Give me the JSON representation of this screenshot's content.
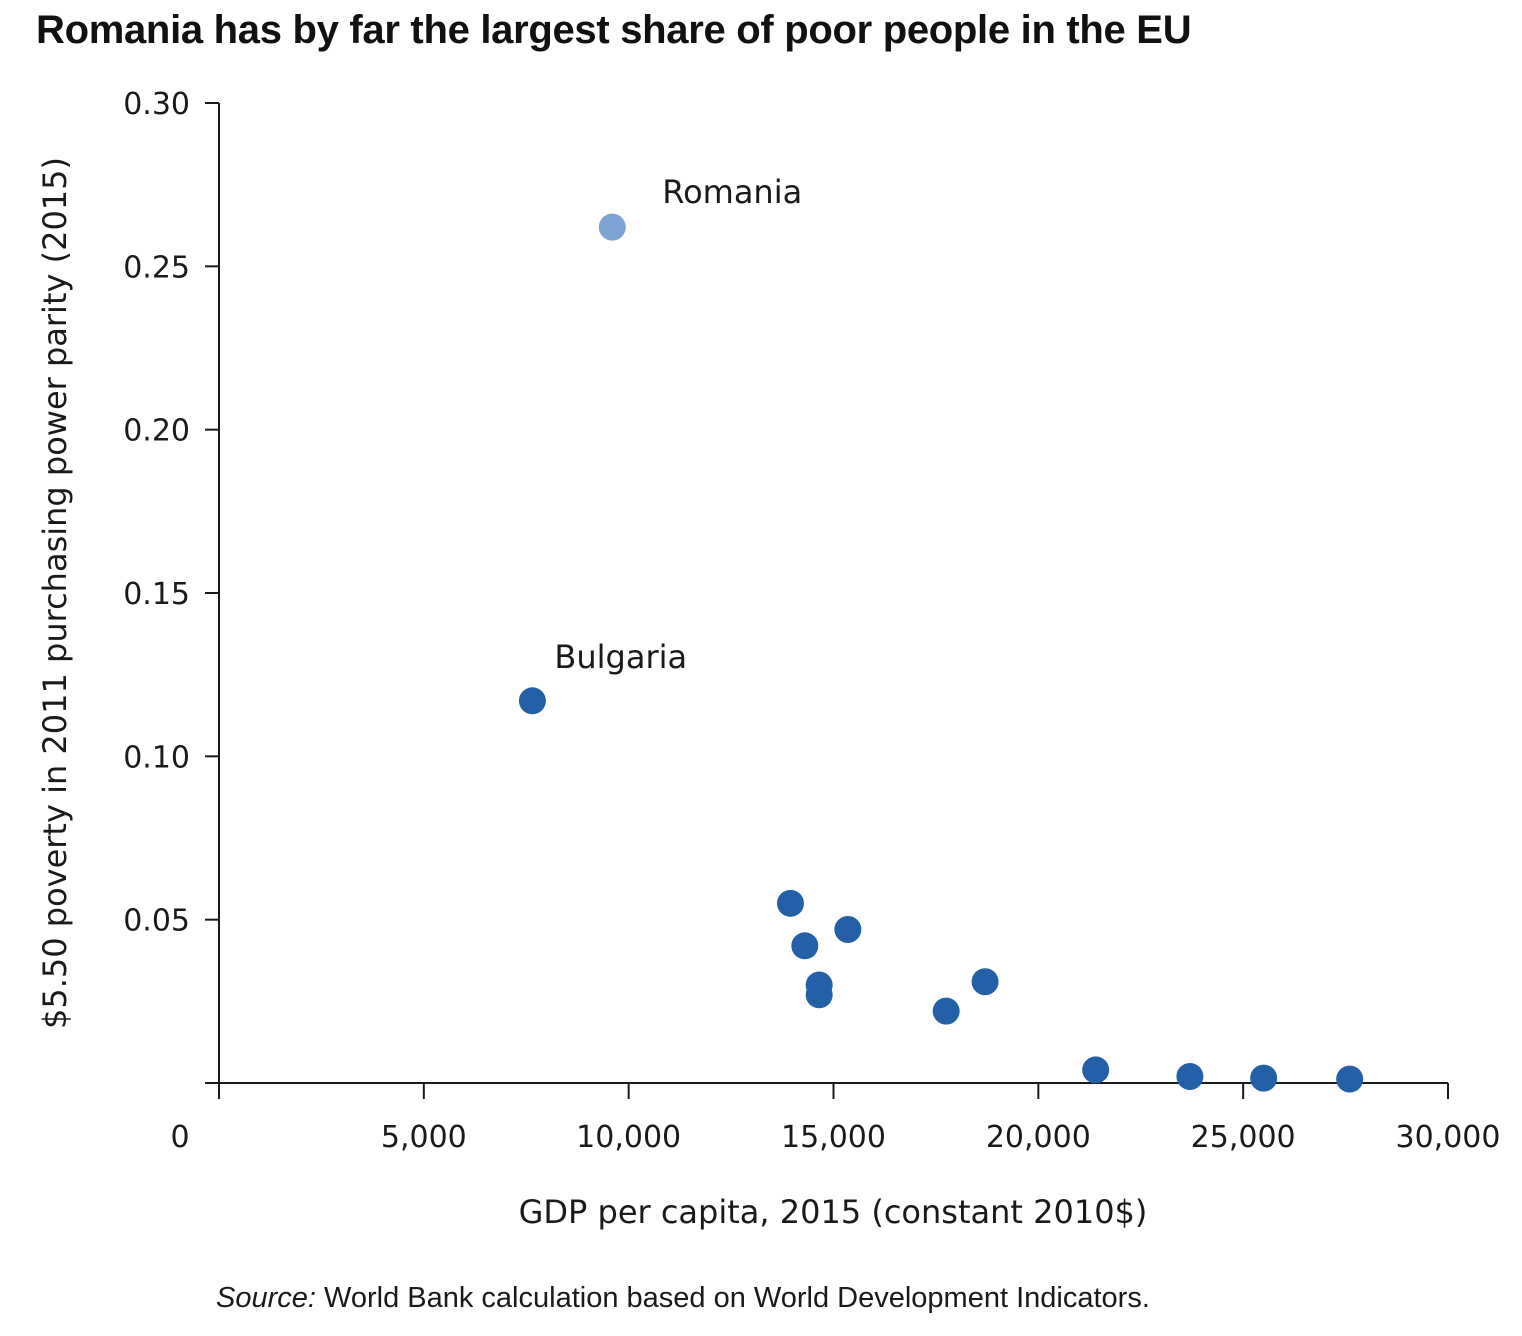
{
  "chart_data": {
    "type": "scatter",
    "title": "Romania has by far the largest share of poor people in the EU",
    "xlabel": "GDP per capita, 2015 (constant 2010$)",
    "ylabel": "$5.50 poverty in 2011 purchasing power parity (2015)",
    "xlim": [
      0,
      30000
    ],
    "ylim": [
      0,
      0.3
    ],
    "x_ticks": [
      0,
      5000,
      10000,
      15000,
      20000,
      25000,
      30000
    ],
    "x_tick_labels": [
      "0",
      "5,000",
      "10,000",
      "15,000",
      "20,000",
      "25,000",
      "30,000"
    ],
    "y_ticks": [
      0.05,
      0.1,
      0.15,
      0.2,
      0.25,
      0.3
    ],
    "y_tick_labels": [
      "0.05",
      "0.10",
      "0.15",
      "0.20",
      "0.25",
      "0.30"
    ],
    "grid": false,
    "points": [
      {
        "x": 9600,
        "y": 0.262,
        "label": "Romania",
        "highlight": true
      },
      {
        "x": 7650,
        "y": 0.117,
        "label": "Bulgaria",
        "highlight": false
      },
      {
        "x": 13950,
        "y": 0.055,
        "label": "",
        "highlight": false
      },
      {
        "x": 14300,
        "y": 0.042,
        "label": "",
        "highlight": false
      },
      {
        "x": 15350,
        "y": 0.047,
        "label": "",
        "highlight": false
      },
      {
        "x": 14650,
        "y": 0.03,
        "label": "",
        "highlight": false
      },
      {
        "x": 14650,
        "y": 0.027,
        "label": "",
        "highlight": false
      },
      {
        "x": 17750,
        "y": 0.022,
        "label": "",
        "highlight": false
      },
      {
        "x": 18700,
        "y": 0.031,
        "label": "",
        "highlight": false
      },
      {
        "x": 21400,
        "y": 0.004,
        "label": "",
        "highlight": false
      },
      {
        "x": 23700,
        "y": 0.002,
        "label": "",
        "highlight": false
      },
      {
        "x": 25500,
        "y": 0.0015,
        "label": "",
        "highlight": false
      },
      {
        "x": 27600,
        "y": 0.0012,
        "label": "",
        "highlight": false
      }
    ],
    "colors": {
      "point": "#2460A7",
      "highlight_point": "#7BA3D4",
      "axis": "#1a1a1a"
    }
  },
  "source": {
    "label": "Source:",
    "text": " World Bank calculation based on World Development Indicators."
  }
}
